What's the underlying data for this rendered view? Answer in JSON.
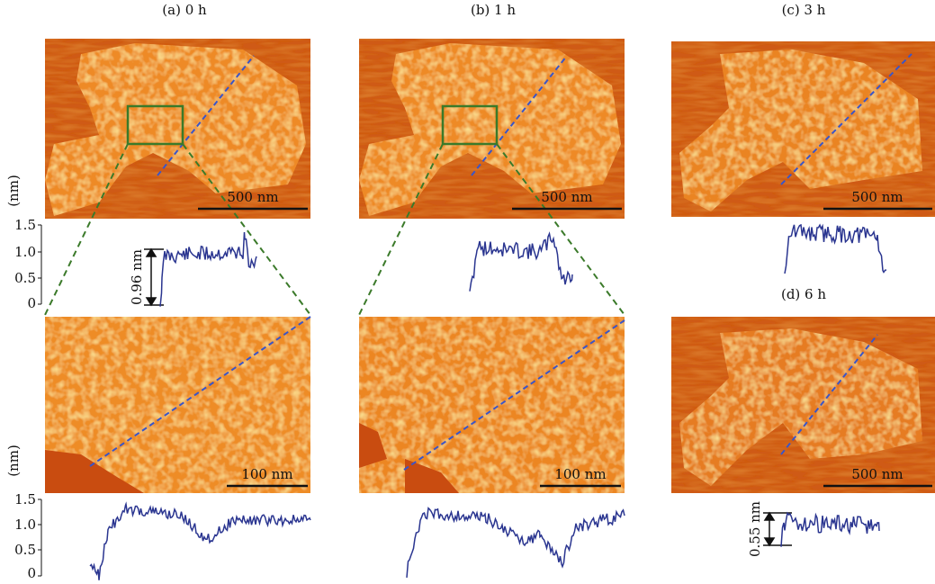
{
  "panels": [
    {
      "label": "(a) 0 h",
      "scale_bar": "500 nm",
      "zoom_scale_bar": "100 nm"
    },
    {
      "label": "(b) 1 h",
      "scale_bar": "500 nm",
      "zoom_scale_bar": "100 nm"
    },
    {
      "label": "(c) 3 h",
      "scale_bar": "500 nm"
    },
    {
      "label": "(d) 6 h",
      "scale_bar": "500 nm"
    }
  ],
  "axes": [
    {
      "unit": "(nm)",
      "ticks": [
        "1.5",
        "1.0",
        "0.5",
        "0"
      ]
    },
    {
      "unit": "(nm)",
      "ticks": [
        "1.5",
        "1.0",
        "0.5",
        "0"
      ]
    }
  ],
  "annotations": [
    "0.96 nm",
    "0.55 nm"
  ]
}
